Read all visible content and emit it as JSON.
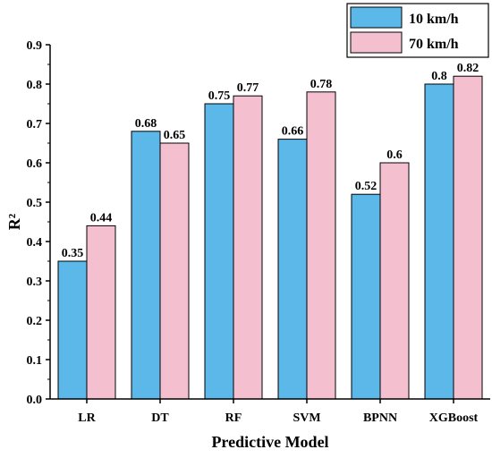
{
  "chart_data": {
    "type": "bar",
    "categories": [
      "LR",
      "DT",
      "RF",
      "SVM",
      "BPNN",
      "XGBoost"
    ],
    "series": [
      {
        "name": "10 km/h",
        "values": [
          0.35,
          0.68,
          0.75,
          0.66,
          0.52,
          0.8
        ],
        "color": "#5bb8e8"
      },
      {
        "name": "70 km/h",
        "values": [
          0.44,
          0.65,
          0.77,
          0.78,
          0.6,
          0.82
        ],
        "color": "#f4bfcf"
      }
    ],
    "value_labels": [
      [
        "0.35",
        "0.68",
        "0.75",
        "0.66",
        "0.52",
        "0.8"
      ],
      [
        "0.44",
        "0.65",
        "0.77",
        "0.78",
        "0.6",
        "0.82"
      ]
    ],
    "yticks": [
      "0.0",
      "0.1",
      "0.2",
      "0.3",
      "0.4",
      "0.5",
      "0.6",
      "0.7",
      "0.8",
      "0.9"
    ],
    "ylim": [
      0,
      0.9
    ],
    "xlabel": "Predictive Model",
    "ylabel": "R²",
    "grid": false,
    "legend_position": "top-right"
  }
}
